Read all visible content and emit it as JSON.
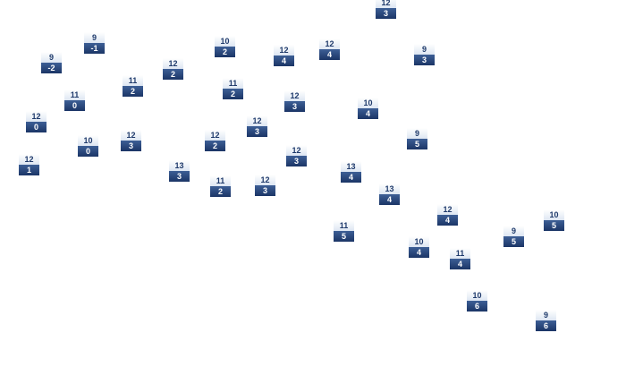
{
  "nodes": [
    {
      "top": 12,
      "bottom": 3
    },
    {
      "top": 9,
      "bottom": -1
    },
    {
      "top": 9,
      "bottom": -2
    },
    {
      "top": 10,
      "bottom": 2
    },
    {
      "top": 12,
      "bottom": 4
    },
    {
      "top": 12,
      "bottom": 4
    },
    {
      "top": 9,
      "bottom": 3
    },
    {
      "top": 12,
      "bottom": 2
    },
    {
      "top": 11,
      "bottom": 2
    },
    {
      "top": 11,
      "bottom": 0
    },
    {
      "top": 11,
      "bottom": 2
    },
    {
      "top": 12,
      "bottom": 3
    },
    {
      "top": 10,
      "bottom": 4
    },
    {
      "top": 12,
      "bottom": 0
    },
    {
      "top": 12,
      "bottom": 3
    },
    {
      "top": 9,
      "bottom": 5
    },
    {
      "top": 10,
      "bottom": 0
    },
    {
      "top": 12,
      "bottom": 3
    },
    {
      "top": 12,
      "bottom": 2
    },
    {
      "top": 12,
      "bottom": 3
    },
    {
      "top": 12,
      "bottom": 1
    },
    {
      "top": 13,
      "bottom": 3
    },
    {
      "top": 13,
      "bottom": 4
    },
    {
      "top": 11,
      "bottom": 2
    },
    {
      "top": 12,
      "bottom": 3
    },
    {
      "top": 13,
      "bottom": 4
    },
    {
      "top": 12,
      "bottom": 4
    },
    {
      "top": 10,
      "bottom": 5
    },
    {
      "top": 11,
      "bottom": 5
    },
    {
      "top": 9,
      "bottom": 5
    },
    {
      "top": 10,
      "bottom": 4
    },
    {
      "top": 11,
      "bottom": 4
    },
    {
      "top": 10,
      "bottom": 6
    },
    {
      "top": 9,
      "bottom": 6
    }
  ]
}
